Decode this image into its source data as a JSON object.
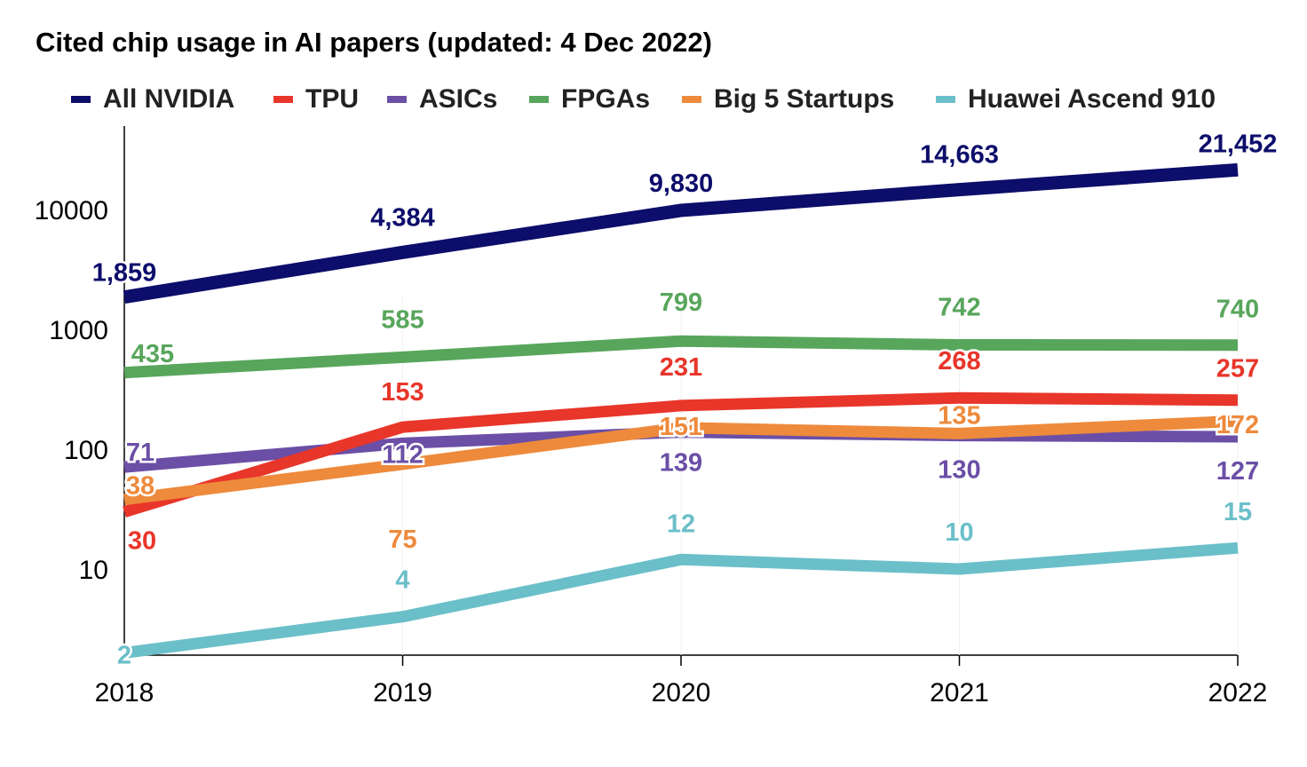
{
  "chart_data": {
    "type": "line",
    "title": "Cited chip usage in AI papers (updated: 4 Dec 2022)",
    "x": [
      "2018",
      "2019",
      "2020",
      "2021",
      "2022"
    ],
    "yscale": "log",
    "ylim": [
      2,
      30000
    ],
    "yticks": [
      "10",
      "100",
      "1000",
      "10000"
    ],
    "grid": false,
    "legend_position": "top",
    "series": [
      {
        "name": "All NVIDIA",
        "color": "#0d0d6b",
        "values": [
          1859,
          4384,
          9830,
          14663,
          21452
        ],
        "labels": [
          "1,859",
          "4,384",
          "9,830",
          "14,663",
          "21,452"
        ]
      },
      {
        "name": "TPU",
        "color": "#e8362a",
        "values": [
          30,
          153,
          231,
          268,
          257
        ],
        "labels": [
          "30",
          "153",
          "231",
          "268",
          "257"
        ]
      },
      {
        "name": "ASICs",
        "color": "#6b4fa6",
        "values": [
          71,
          112,
          139,
          130,
          127
        ],
        "labels": [
          "71",
          "112",
          "139",
          "130",
          "127"
        ]
      },
      {
        "name": "FPGAs",
        "color": "#58a65c",
        "values": [
          435,
          585,
          799,
          742,
          740
        ],
        "labels": [
          "435",
          "585",
          "799",
          "742",
          "740"
        ]
      },
      {
        "name": "Big 5 Startups",
        "color": "#ee8a3c",
        "values": [
          38,
          75,
          151,
          135,
          172
        ],
        "labels": [
          "38",
          "75",
          "151",
          "135",
          "172"
        ]
      },
      {
        "name": "Huawei Ascend 910",
        "color": "#6bbfc9",
        "values": [
          2,
          4,
          12,
          10,
          15
        ],
        "labels": [
          "2",
          "4",
          "12",
          "10",
          "15"
        ]
      }
    ]
  }
}
